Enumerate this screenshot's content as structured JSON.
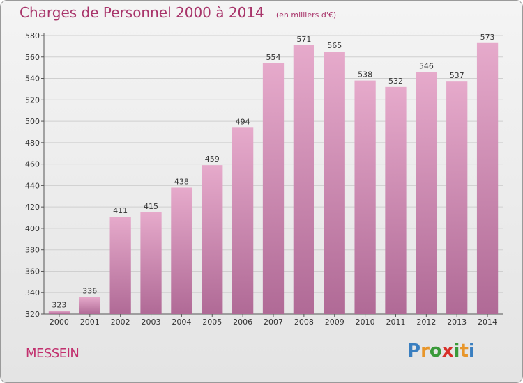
{
  "header": {
    "title": "Charges de Personnel 2000 à 2014",
    "subtitle": "(en milliers d'€)"
  },
  "footer": {
    "place": "MESSEIN",
    "logo_letters": [
      "P",
      "r",
      "o",
      "x",
      "i",
      "t",
      "i"
    ],
    "logo_colors": [
      "#3a7fc0",
      "#e8962a",
      "#3a9a3a",
      "#d8302a",
      "#3a9a3a",
      "#e8962a",
      "#3a7fc0"
    ]
  },
  "colors": {
    "bar_top": "#e6aacb",
    "bar_bottom": "#b06a96",
    "axis_text": "#333333",
    "gridline": "#cfcfcf"
  },
  "chart_data": {
    "type": "bar",
    "title": "Charges de Personnel 2000 à 2014",
    "subtitle": "(en milliers d'€)",
    "categories": [
      "2000",
      "2001",
      "2002",
      "2003",
      "2004",
      "2005",
      "2006",
      "2007",
      "2008",
      "2009",
      "2010",
      "2011",
      "2012",
      "2013",
      "2014"
    ],
    "values": [
      323,
      336,
      411,
      415,
      438,
      459,
      494,
      554,
      571,
      565,
      538,
      532,
      546,
      537,
      573
    ],
    "ylim": [
      320,
      580
    ],
    "yticks": [
      320,
      340,
      360,
      380,
      400,
      420,
      440,
      460,
      480,
      500,
      520,
      540,
      560,
      580
    ],
    "grid": true
  }
}
